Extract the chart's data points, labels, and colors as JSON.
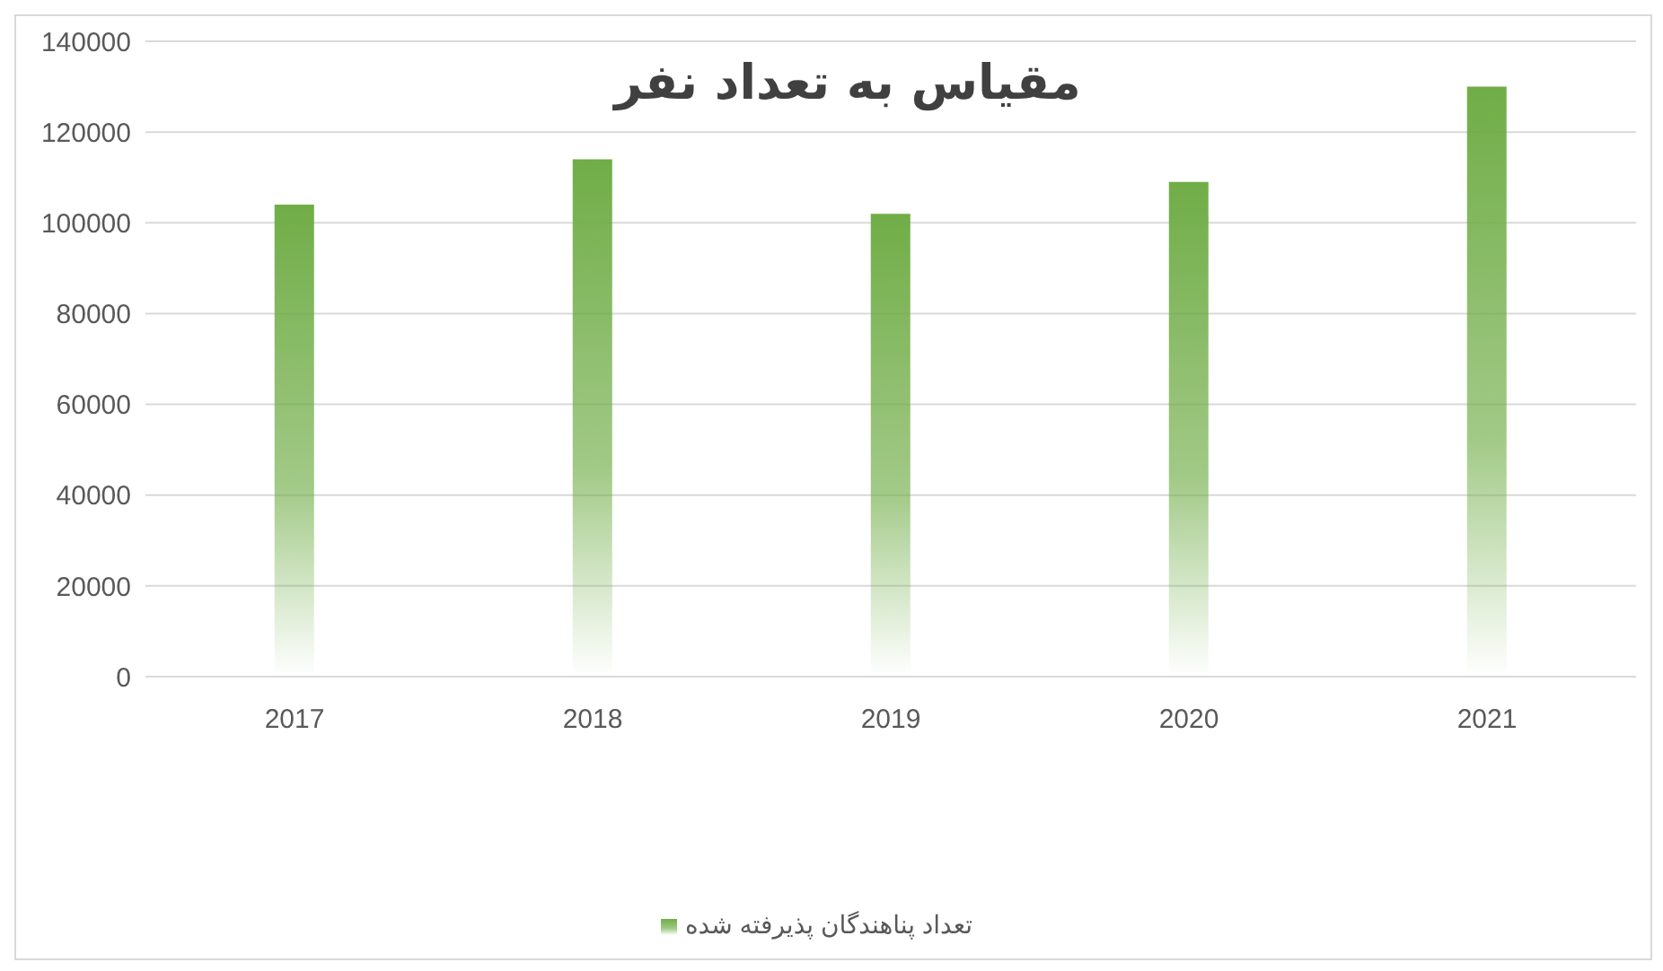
{
  "chart_data": {
    "type": "bar",
    "title": "مقیاس به تعداد نفر",
    "categories": [
      "2017",
      "2018",
      "2019",
      "2020",
      "2021"
    ],
    "series": [
      {
        "name": "تعداد پناهندگان پذیرفته شده",
        "color": "#70ad47",
        "values": [
          104000,
          114000,
          102000,
          109000,
          130000
        ]
      }
    ],
    "ylim": [
      0,
      140000
    ],
    "yticks": [
      0,
      20000,
      40000,
      60000,
      80000,
      100000,
      120000,
      140000
    ],
    "grid": "y",
    "legend": "bottom"
  }
}
